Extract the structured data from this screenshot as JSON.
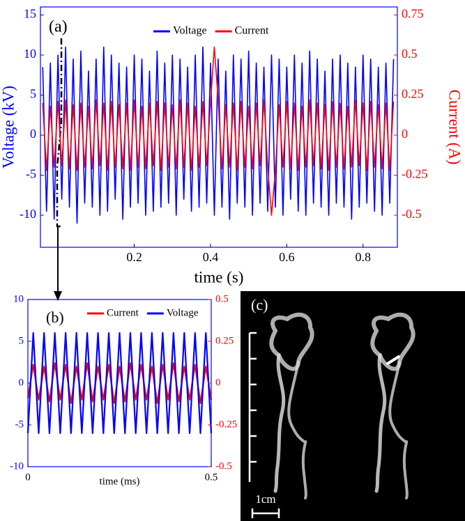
{
  "chart_data": [
    {
      "type": "line",
      "label": "(a)",
      "xlabel": "time (s)",
      "ylabel": "Voltage (kV)",
      "y2label": "Current (A)",
      "xlim": [
        -0.046,
        0.89
      ],
      "xticks": [
        0.2,
        0.4,
        0.6,
        0.8
      ],
      "ylim": [
        -14,
        16
      ],
      "yticks": [
        -10,
        -5,
        0,
        5,
        10,
        15
      ],
      "y2lim": [
        -0.7,
        0.8
      ],
      "y2ticks": [
        -0.5,
        -0.25,
        0,
        0.25,
        0.5,
        0.75
      ],
      "x": [
        -0.04,
        -0.03,
        -0.02,
        -0.01,
        0,
        0.01,
        0.02,
        0.03,
        0.04,
        0.05,
        0.06,
        0.07,
        0.08,
        0.09,
        0.1,
        0.11,
        0.12,
        0.13,
        0.14,
        0.15,
        0.16,
        0.17,
        0.18,
        0.19,
        0.2,
        0.21,
        0.22,
        0.23,
        0.24,
        0.25,
        0.26,
        0.27,
        0.28,
        0.29,
        0.3,
        0.31,
        0.32,
        0.33,
        0.34,
        0.35,
        0.36,
        0.37,
        0.38,
        0.39,
        0.4,
        0.41,
        0.42,
        0.43,
        0.44,
        0.45,
        0.46,
        0.47,
        0.48,
        0.49,
        0.5,
        0.51,
        0.52,
        0.53,
        0.54,
        0.55,
        0.56,
        0.57,
        0.58,
        0.59,
        0.6,
        0.61,
        0.62,
        0.63,
        0.64,
        0.65,
        0.66,
        0.67,
        0.68,
        0.69,
        0.7,
        0.71,
        0.72,
        0.73,
        0.74,
        0.75,
        0.76,
        0.77,
        0.78,
        0.79,
        0.8,
        0.81,
        0.82,
        0.83,
        0.84,
        0.85,
        0.86,
        0.87,
        0.88
      ],
      "series": [
        {
          "name": "Voltage",
          "color": "#0000ff",
          "axis": "y",
          "values": [
            8.5,
            -9.5,
            9,
            -10.5,
            10,
            -8,
            11,
            -9,
            9.5,
            -11,
            10.5,
            -8.5,
            8,
            -9,
            9.5,
            -10,
            11,
            -9.5,
            10,
            -8,
            9,
            -10.5,
            8.5,
            -9,
            10,
            -8.5,
            9.5,
            -10,
            8,
            -9.5,
            10.5,
            -9,
            9,
            -8.5,
            10,
            -10,
            9.5,
            -8,
            8.5,
            -9.5,
            10,
            -9,
            11,
            -8.5,
            9,
            -10,
            9.5,
            -9,
            8,
            -10.5,
            10,
            -8.5,
            9.5,
            -9,
            10.5,
            -10,
            9,
            -8.5,
            8.5,
            -9.5,
            10,
            -9,
            9.5,
            -10,
            8.5,
            -8,
            10,
            -9.5,
            9,
            -10,
            10.5,
            -8.5,
            9.5,
            -9,
            8,
            -10,
            9.5,
            -8.5,
            10,
            -9,
            9,
            -10.5,
            8.5,
            -9,
            10,
            -8.5,
            9.5,
            -9.5,
            8.5,
            -10,
            9,
            -8.5,
            9.5
          ]
        },
        {
          "name": "Current",
          "color": "#ff0000",
          "axis": "y2",
          "values": [
            0.2,
            -0.22,
            0.18,
            -0.2,
            0.21,
            -0.19,
            0.22,
            -0.21,
            0.19,
            -0.22,
            0.2,
            -0.2,
            0.18,
            -0.21,
            0.22,
            -0.19,
            0.2,
            -0.22,
            0.21,
            -0.2,
            0.19,
            -0.21,
            0.2,
            -0.22,
            0.22,
            -0.2,
            0.18,
            -0.21,
            0.2,
            -0.19,
            0.21,
            -0.22,
            0.2,
            -0.2,
            0.19,
            -0.21,
            0.22,
            -0.2,
            0.2,
            -0.22,
            0.18,
            -0.2,
            0.21,
            -0.19,
            0.2,
            0.55,
            0.22,
            -0.21,
            0.19,
            -0.2,
            0.2,
            -0.22,
            0.21,
            -0.2,
            0.18,
            -0.21,
            0.2,
            -0.19,
            0.22,
            -0.2,
            -0.5,
            -0.22,
            0.19,
            -0.2,
            0.21,
            -0.21,
            0.2,
            -0.22,
            0.18,
            -0.2,
            0.22,
            -0.19,
            0.2,
            -0.21,
            0.19,
            -0.22,
            0.21,
            -0.2,
            0.2,
            -0.21,
            0.18,
            -0.2,
            0.22,
            -0.19,
            0.2,
            -0.22,
            0.21,
            -0.2,
            0.19,
            -0.21,
            0.2,
            -0.22,
            0.21
          ]
        }
      ]
    },
    {
      "type": "line",
      "label": "(b)",
      "xlabel": "time (ms)",
      "xlim": [
        0,
        0.5
      ],
      "xticks": [
        0,
        0.5
      ],
      "ylim": [
        -10,
        10
      ],
      "yticks": [
        -10,
        -5,
        0,
        5,
        10
      ],
      "y2lim": [
        -0.5,
        0.5
      ],
      "y2ticks": [
        -0.5,
        -0.25,
        0,
        0.25,
        0.5
      ],
      "x": [
        0,
        0.0147,
        0.0294,
        0.0441,
        0.0588,
        0.0735,
        0.0882,
        0.1029,
        0.1176,
        0.1324,
        0.1471,
        0.1618,
        0.1765,
        0.1912,
        0.2059,
        0.2206,
        0.2353,
        0.25,
        0.2647,
        0.2794,
        0.2941,
        0.3088,
        0.3235,
        0.3382,
        0.3529,
        0.3676,
        0.3824,
        0.3971,
        0.4118,
        0.4265,
        0.4412,
        0.4559,
        0.4706,
        0.4853,
        0.5
      ],
      "series": [
        {
          "name": "Current",
          "color": "#ff0000",
          "axis": "y2",
          "values": [
            -0.09,
            0.11,
            -0.1,
            0.1,
            -0.11,
            0.12,
            -0.1,
            0.11,
            -0.12,
            0.1,
            -0.1,
            0.12,
            -0.11,
            0.1,
            -0.1,
            0.11,
            -0.12,
            0.1,
            -0.11,
            0.12,
            -0.1,
            0.11,
            -0.1,
            0.1,
            -0.12,
            0.11,
            -0.1,
            0.12,
            -0.11,
            0.1,
            -0.1,
            0.11,
            -0.12,
            0.1,
            -0.1
          ]
        },
        {
          "name": "Voltage",
          "color": "#0000ff",
          "axis": "y",
          "values": [
            -6,
            6,
            -6,
            6,
            -6,
            6,
            -6,
            6,
            -6,
            6,
            -6,
            6,
            -6,
            6,
            -6,
            6,
            -6,
            6,
            -6,
            6,
            -6,
            6,
            -6,
            6,
            -6,
            6,
            -6,
            6,
            -6,
            6,
            -6,
            6,
            -6,
            6,
            -6
          ]
        }
      ]
    }
  ],
  "image_panel": {
    "label": "(c)",
    "scale_label": "1cm"
  }
}
